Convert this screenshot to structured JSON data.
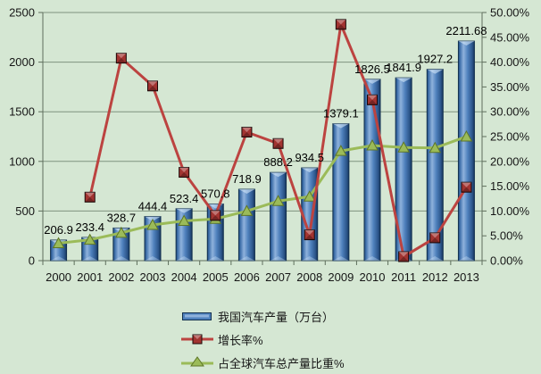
{
  "chart_data": {
    "type": "bar",
    "title": "",
    "categories": [
      "2000",
      "2001",
      "2002",
      "2003",
      "2004",
      "2005",
      "2006",
      "2007",
      "2008",
      "2009",
      "2010",
      "2011",
      "2012",
      "2013"
    ],
    "series": [
      {
        "name": "我国汽车产量（万台）",
        "kind": "bar",
        "axis": "left",
        "values": [
          206.9,
          233.4,
          328.7,
          444.4,
          523.4,
          570.8,
          718.9,
          888.2,
          934.5,
          1379.1,
          1826.5,
          1841.9,
          1927.2,
          2211.68
        ],
        "labels": [
          "206.9",
          "233.4",
          "328.7",
          "444.4",
          "523.4",
          "570.8",
          "718.9",
          "888.2",
          "934.5",
          "1379.1",
          "1826.5",
          "1841.9",
          "1927.2",
          "2211.68"
        ]
      },
      {
        "name": "增长率%",
        "kind": "line",
        "axis": "right",
        "marker": "square",
        "values": [
          null,
          12.8,
          40.8,
          35.2,
          17.8,
          9.1,
          25.9,
          23.6,
          5.2,
          47.6,
          32.4,
          0.8,
          4.6,
          14.8
        ]
      },
      {
        "name": "占全球汽车总产量比重%",
        "kind": "line",
        "axis": "right",
        "marker": "triangle",
        "values": [
          3.5,
          4.2,
          5.6,
          7.2,
          8.0,
          8.4,
          10.0,
          12.0,
          12.9,
          22.1,
          23.2,
          22.8,
          22.7,
          25.0
        ]
      }
    ],
    "left_axis": {
      "min": 0,
      "max": 2500,
      "step": 500,
      "tick_labels": [
        "0",
        "500",
        "1000",
        "1500",
        "2000",
        "2500"
      ]
    },
    "right_axis": {
      "min": 0,
      "max": 50,
      "step": 5,
      "tick_labels": [
        "0.00%",
        "5.00%",
        "10.00%",
        "15.00%",
        "20.00%",
        "25.00%",
        "30.00%",
        "35.00%",
        "40.00%",
        "45.00%",
        "50.00%"
      ]
    },
    "grid": true,
    "legend_position": "bottom"
  },
  "legend": {
    "items": [
      {
        "label": "我国汽车产量（万台）"
      },
      {
        "label": "增长率%"
      },
      {
        "label": "占全球汽车总产量比重%"
      }
    ]
  },
  "colors": {
    "background": "#d5e7d3",
    "bar_mid": "#4f81bd",
    "bar_light": "#8fb2dc",
    "bar_dark": "#1f4a7d",
    "bar_edge": "#12304f",
    "growth_line": "#bc4340",
    "growth_marker": "#a23431",
    "growth_marker_edge": "#1c0707",
    "share_line": "#9bbb59",
    "share_marker_edge": "#5e7626",
    "grid": "#7f937f",
    "axis": "#5e6e5c",
    "text": "#161616"
  }
}
